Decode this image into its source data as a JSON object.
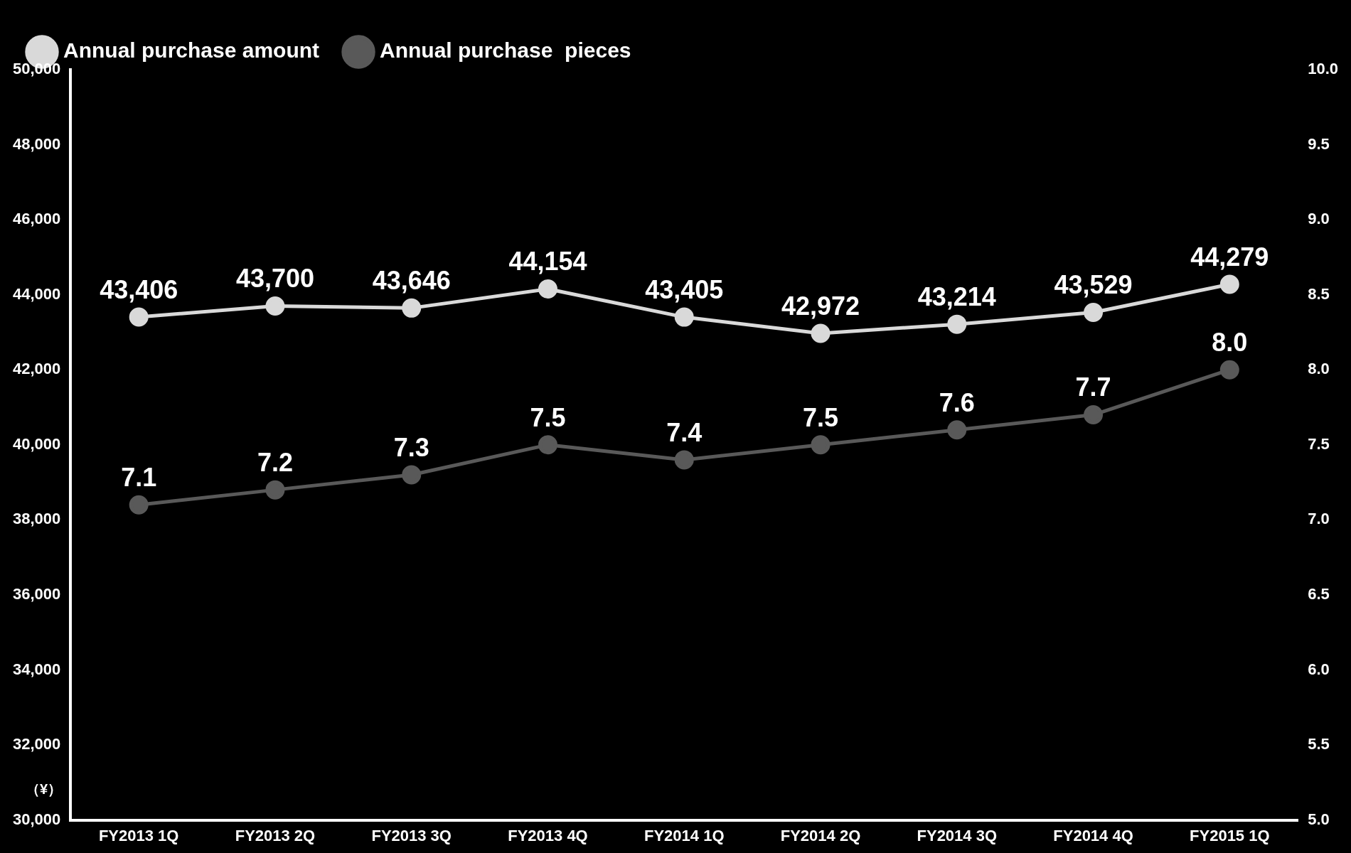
{
  "chart_data": {
    "type": "line",
    "ylabel": "（¥）",
    "categories": [
      "FY2013 1Q",
      "FY2013 2Q",
      "FY2013 3Q",
      "FY2013 4Q",
      "FY2014 1Q",
      "FY2014 2Q",
      "FY2014 3Q",
      "FY2014 4Q",
      "FY2015 1Q"
    ],
    "series": [
      {
        "name": "Annual purchase amount",
        "color": "#d9d9d9",
        "values": [
          43406,
          43700,
          43646,
          44154,
          43405,
          42972,
          43214,
          43529,
          44279
        ],
        "value_labels": [
          "43,406",
          "43,700",
          "43,646",
          "44,154",
          "43,405",
          "42,972",
          "43,214",
          "43,529",
          "44,279"
        ]
      },
      {
        "name": "Annual purchase  pieces",
        "color": "#595959",
        "axis": "y2",
        "values": [
          7.1,
          7.2,
          7.3,
          7.5,
          7.4,
          7.5,
          7.6,
          7.7,
          8.0
        ],
        "value_labels": [
          "7.1",
          "7.2",
          "7.3",
          "7.5",
          "7.4",
          "7.5",
          "7.6",
          "7.7",
          "8.0"
        ]
      }
    ],
    "ylim": [
      30000,
      50000
    ],
    "yticks": [
      {
        "value": 30000,
        "label": "30,000"
      },
      {
        "value": 32000,
        "label": "32,000"
      },
      {
        "value": 34000,
        "label": "34,000"
      },
      {
        "value": 36000,
        "label": "36,000"
      },
      {
        "value": 38000,
        "label": "38,000"
      },
      {
        "value": 40000,
        "label": "40,000"
      },
      {
        "value": 42000,
        "label": "42,000"
      },
      {
        "value": 44000,
        "label": "44,000"
      },
      {
        "value": 46000,
        "label": "46,000"
      },
      {
        "value": 48000,
        "label": "48,000"
      },
      {
        "value": 50000,
        "label": "50,000"
      }
    ],
    "y2lim": [
      5,
      10
    ],
    "y2ticks": [
      {
        "value": 5,
        "label": "5.0"
      },
      {
        "value": 5.5,
        "label": "5.5"
      },
      {
        "value": 6,
        "label": "6.0"
      },
      {
        "value": 6.5,
        "label": "6.5"
      },
      {
        "value": 7,
        "label": "7.0"
      },
      {
        "value": 7.5,
        "label": "7.5"
      },
      {
        "value": 8,
        "label": "8.0"
      },
      {
        "value": 8.5,
        "label": "8.5"
      },
      {
        "value": 9,
        "label": "9.0"
      },
      {
        "value": 9.5,
        "label": "9.5"
      },
      {
        "value": 10,
        "label": "10.0"
      }
    ],
    "grid": false,
    "legend": "top left",
    "marker": "circle",
    "line_style": "solid"
  }
}
